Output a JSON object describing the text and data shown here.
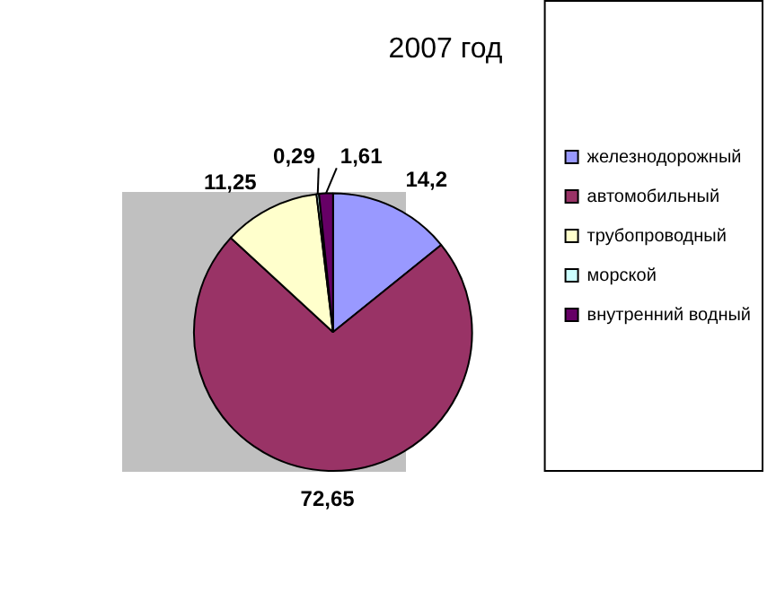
{
  "chart_data": {
    "type": "pie",
    "title": "2007 год",
    "categories": [
      "железнодорожный",
      "автомобильный",
      "трубопроводный",
      "морской",
      "внутренний водный"
    ],
    "values": [
      14.2,
      72.65,
      11.25,
      0.29,
      1.61
    ],
    "colors": [
      "#9999ff",
      "#993366",
      "#ffffcc",
      "#ccffff",
      "#660066"
    ],
    "value_labels": [
      "14,2",
      "72,65",
      "11,25",
      "0,29",
      "1,61"
    ],
    "legend": "right"
  }
}
